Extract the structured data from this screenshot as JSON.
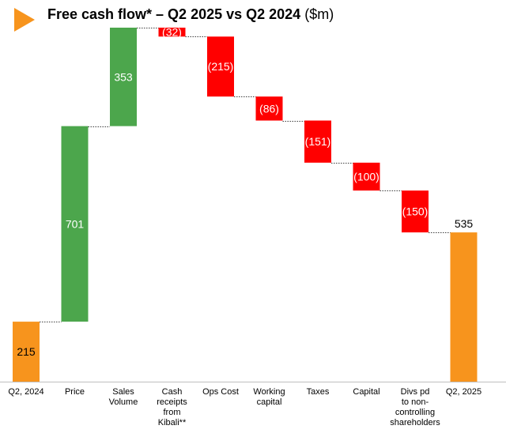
{
  "header": {
    "title_main": "Free cash flow* –  Q2 2025 vs Q2 2024",
    "title_unit": "($m)"
  },
  "colors": {
    "accent": "#F7941D",
    "increase": "#4CA64C",
    "decrease": "#FF0000",
    "total": "#F7941D"
  },
  "chart_data": {
    "type": "waterfall",
    "title": "Free cash flow* –  Q2 2025 vs Q2 2024 ($m)",
    "unit": "$m",
    "ylim": [
      0,
      1269
    ],
    "steps": [
      {
        "category": "Q2, 2024",
        "kind": "total",
        "value": 215,
        "label": "215"
      },
      {
        "category": "Price",
        "kind": "increase",
        "value": 701,
        "label": "701"
      },
      {
        "category": "Sales Volume",
        "kind": "increase",
        "value": 353,
        "label": "353"
      },
      {
        "category": "Cash receipts from Kibali**",
        "kind": "decrease",
        "value": -32,
        "label": "(32)"
      },
      {
        "category": "Ops Cost",
        "kind": "decrease",
        "value": -215,
        "label": "(215)"
      },
      {
        "category": "Working capital",
        "kind": "decrease",
        "value": -86,
        "label": "(86)"
      },
      {
        "category": "Taxes",
        "kind": "decrease",
        "value": -151,
        "label": "(151)"
      },
      {
        "category": "Capital",
        "kind": "decrease",
        "value": -100,
        "label": "(100)"
      },
      {
        "category": "Divs pd to non-controlling shareholders",
        "kind": "decrease",
        "value": -150,
        "label": "(150)"
      },
      {
        "category": "Q2, 2025",
        "kind": "total",
        "value": 535,
        "label": "535"
      }
    ],
    "category_label_lines": [
      [
        "Q2, 2024"
      ],
      [
        "Price"
      ],
      [
        "Sales",
        "Volume"
      ],
      [
        "Cash",
        "receipts",
        "from",
        "Kibali**"
      ],
      [
        "Ops Cost"
      ],
      [
        "Working",
        "capital"
      ],
      [
        "Taxes"
      ],
      [
        "Capital"
      ],
      [
        "Divs pd",
        "to non-",
        "controlling",
        "shareholders"
      ],
      [
        "Q2, 2025"
      ]
    ]
  }
}
